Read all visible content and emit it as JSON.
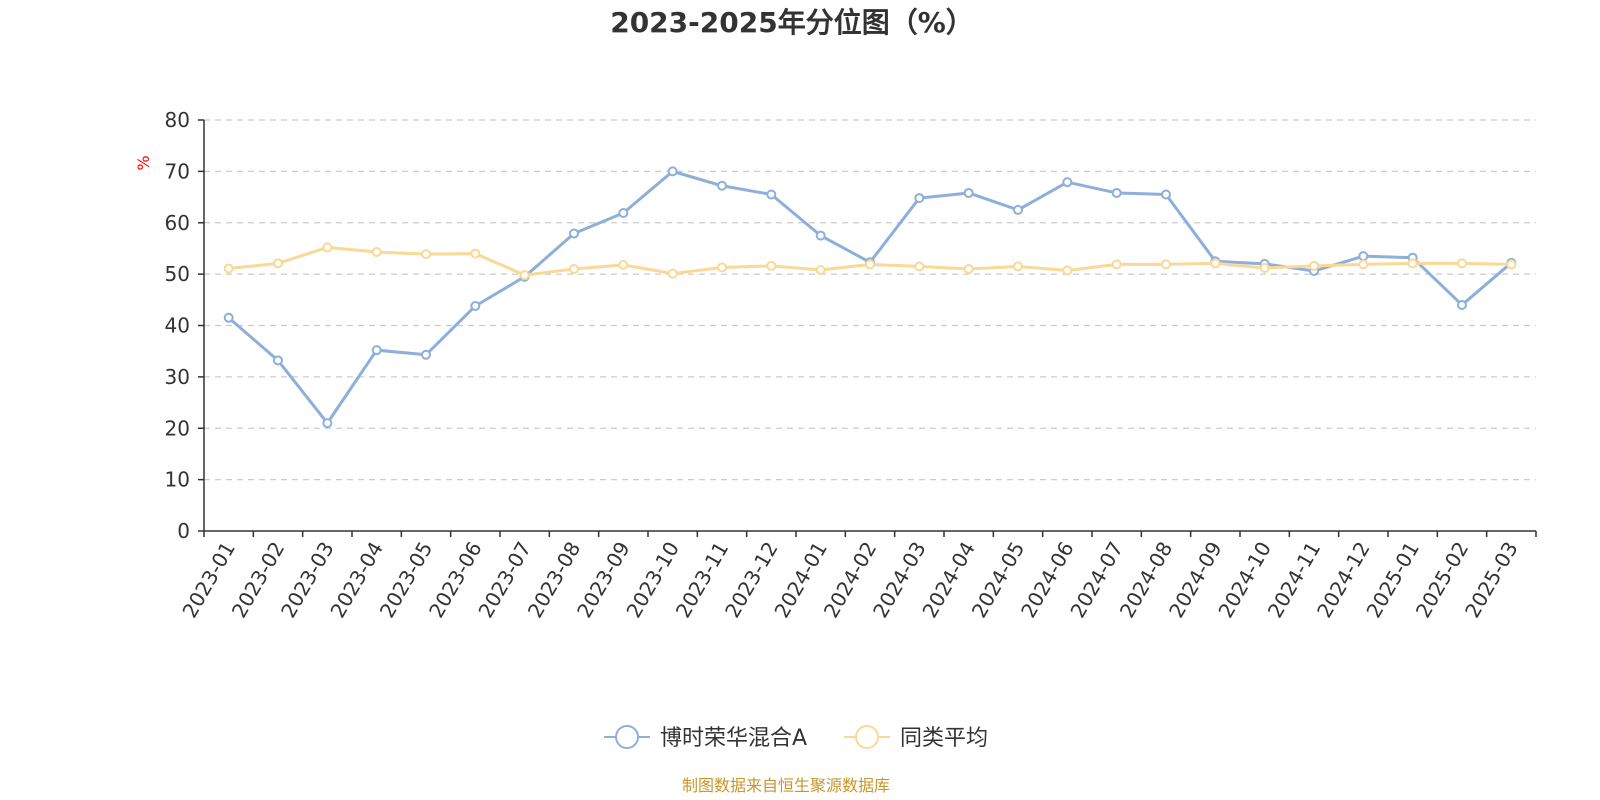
{
  "chart_data": {
    "type": "line",
    "title": "2023-2025年分位图（%）",
    "ylabel": "%",
    "xlabel": "",
    "ylim": [
      0,
      80
    ],
    "yticks": [
      0,
      10,
      20,
      30,
      40,
      50,
      60,
      70,
      80
    ],
    "grid": "horizontal dashed",
    "legend_position": "bottom-center",
    "categories": [
      "2023-01",
      "2023-02",
      "2023-03",
      "2023-04",
      "2023-05",
      "2023-06",
      "2023-07",
      "2023-08",
      "2023-09",
      "2023-10",
      "2023-11",
      "2023-12",
      "2024-01",
      "2024-02",
      "2024-03",
      "2024-04",
      "2024-05",
      "2024-06",
      "2024-07",
      "2024-08",
      "2024-09",
      "2024-10",
      "2024-11",
      "2024-12",
      "2025-01",
      "2025-02",
      "2025-03"
    ],
    "series": [
      {
        "name": "博时荣华混合A",
        "color": "#8eaedb",
        "values": [
          41.5,
          33.2,
          21.0,
          35.2,
          34.3,
          43.8,
          49.5,
          57.9,
          61.9,
          70.0,
          67.2,
          65.5,
          57.5,
          52.3,
          64.8,
          65.8,
          62.5,
          67.9,
          65.8,
          65.5,
          52.5,
          52.0,
          50.6,
          53.5,
          53.2,
          44.0,
          52.2
        ]
      },
      {
        "name": "同类平均",
        "color": "#fad896",
        "values": [
          51.1,
          52.1,
          55.2,
          54.3,
          53.9,
          54.0,
          49.8,
          51.0,
          51.8,
          50.1,
          51.3,
          51.6,
          50.8,
          51.9,
          51.5,
          51.0,
          51.5,
          50.7,
          51.9,
          51.9,
          52.1,
          51.2,
          51.6,
          51.9,
          52.1,
          52.1,
          51.9
        ]
      }
    ]
  },
  "footer": {
    "source": "制图数据来自恒生聚源数据库"
  }
}
